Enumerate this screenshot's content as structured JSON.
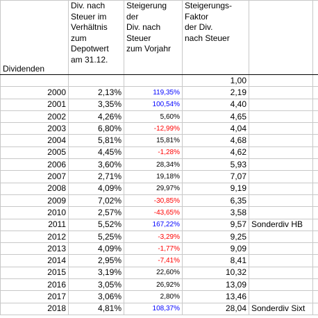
{
  "header": {
    "year": "Dividenden",
    "dividend": "Div. nach\nSteuer im\nVerhältnis\nzum\nDepotwert\nam 31.12.",
    "increase": "Steigerung\nder\nDiv. nach\nSteuer\nzum Vorjahr",
    "factor": "Steigerungs-\nFaktor\nder Div.\nnach Steuer"
  },
  "base_factor": "1,00",
  "rows": [
    {
      "year": "2000",
      "dividend": "2,13%",
      "increase": "119,35%",
      "factor": "2,19"
    },
    {
      "year": "2001",
      "dividend": "3,35%",
      "increase": "100,54%",
      "factor": "4,40"
    },
    {
      "year": "2002",
      "dividend": "4,26%",
      "increase": "5,60%",
      "factor": "4,65"
    },
    {
      "year": "2003",
      "dividend": "6,80%",
      "increase": "-12,99%",
      "factor": "4,04"
    },
    {
      "year": "2004",
      "dividend": "5,81%",
      "increase": "15,81%",
      "factor": "4,68"
    },
    {
      "year": "2005",
      "dividend": "4,45%",
      "increase": "-1,28%",
      "factor": "4,62"
    },
    {
      "year": "2006",
      "dividend": "3,60%",
      "increase": "28,34%",
      "factor": "5,93"
    },
    {
      "year": "2007",
      "dividend": "2,71%",
      "increase": "19,18%",
      "factor": "7,07"
    },
    {
      "year": "2008",
      "dividend": "4,09%",
      "increase": "29,97%",
      "factor": "9,19"
    },
    {
      "year": "2009",
      "dividend": "7,02%",
      "increase": "-30,85%",
      "factor": "6,35"
    },
    {
      "year": "2010",
      "dividend": "2,57%",
      "increase": "-43,65%",
      "factor": "3,58"
    },
    {
      "year": "2011",
      "dividend": "5,52%",
      "increase": "167,22%",
      "factor": "9,57",
      "note": "Sonderdiv HB"
    },
    {
      "year": "2012",
      "dividend": "5,25%",
      "increase": "-3,29%",
      "factor": "9,25"
    },
    {
      "year": "2013",
      "dividend": "4,09%",
      "increase": "-1,77%",
      "factor": "9,09"
    },
    {
      "year": "2014",
      "dividend": "2,95%",
      "increase": "-7,41%",
      "factor": "8,41"
    },
    {
      "year": "2015",
      "dividend": "3,19%",
      "increase": "22,60%",
      "factor": "10,32"
    },
    {
      "year": "2016",
      "dividend": "3,05%",
      "increase": "26,92%",
      "factor": "13,09"
    },
    {
      "year": "2017",
      "dividend": "3,06%",
      "increase": "2,80%",
      "factor": "13,46"
    },
    {
      "year": "2018",
      "dividend": "4,81%",
      "increase": "108,37%",
      "factor": "28,04",
      "note": "Sonderdiv Sixt"
    }
  ]
}
